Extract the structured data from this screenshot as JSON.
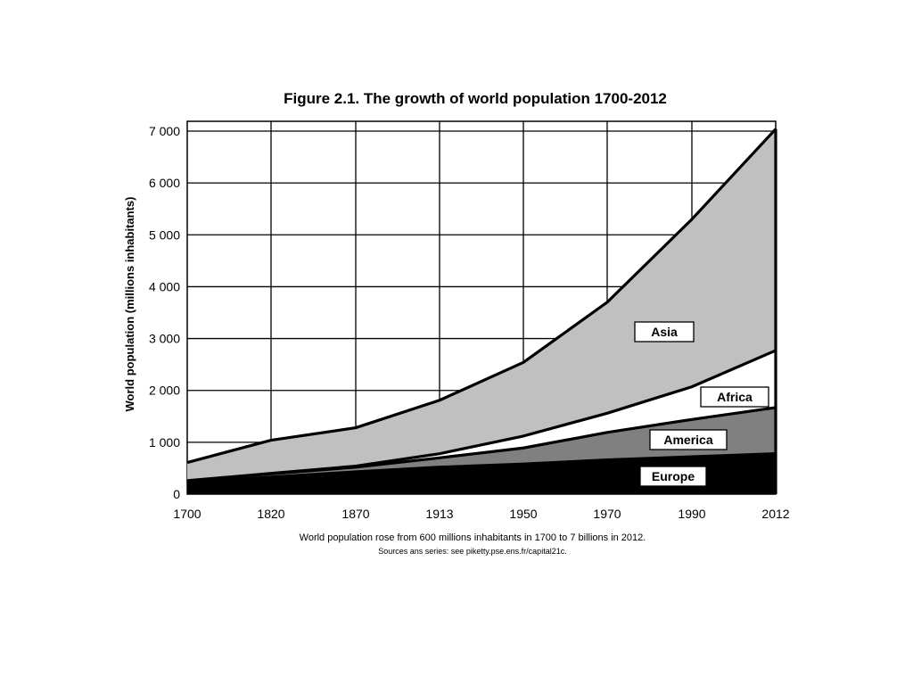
{
  "chart_data": {
    "type": "area",
    "stacked": true,
    "title": "Figure 2.1. The growth of world population 1700-2012",
    "ylabel": "World population (millions inhabitants)",
    "xlabel": "",
    "categories": [
      "1700",
      "1820",
      "1870",
      "1913",
      "1950",
      "1970",
      "1990",
      "2012"
    ],
    "ylim": [
      0,
      7000
    ],
    "yticks": [
      0,
      1000,
      2000,
      3000,
      4000,
      5000,
      6000,
      7000
    ],
    "ytick_labels": [
      "0",
      "1 000",
      "2 000",
      "3 000",
      "4 000",
      "5 000",
      "6 000",
      "7 000"
    ],
    "grid": true,
    "series": [
      {
        "name": "Europe",
        "values": [
          220,
          330,
          430,
          520,
          580,
          660,
          720,
          780
        ],
        "color": "#000000"
      },
      {
        "name": "America",
        "values": [
          30,
          60,
          90,
          180,
          310,
          530,
          720,
          890
        ],
        "color": "#808080"
      },
      {
        "name": "Africa",
        "values": [
          10,
          10,
          20,
          80,
          230,
          370,
          630,
          1100
        ],
        "color": "#ffffff"
      },
      {
        "name": "Asia",
        "values": [
          350,
          640,
          740,
          1030,
          1420,
          2140,
          3230,
          4270
        ],
        "color": "#c0c0c0"
      }
    ],
    "caption": "World population rose from 600 millions inhabitants in 1700 to 7 billions in 2012.",
    "source": "Sources ans series: see piketty.pse.ens.fr/capital21c."
  }
}
